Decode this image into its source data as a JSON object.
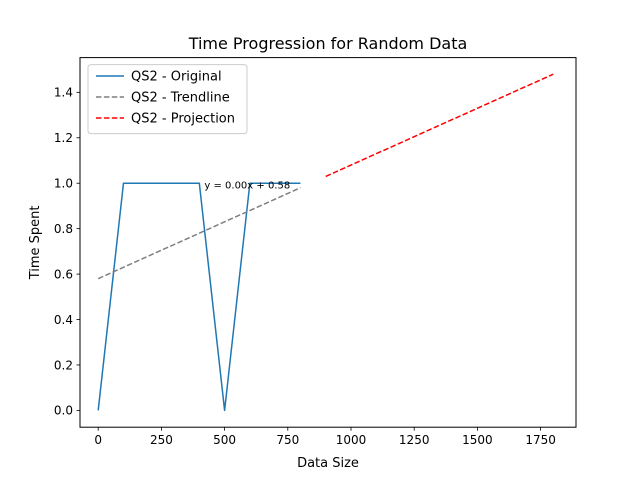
{
  "chart_data": {
    "type": "line",
    "title": "Time Progression for Random Data",
    "xlabel": "Data Size",
    "ylabel": "Time Spent",
    "xlim": [
      -72,
      1890
    ],
    "ylim": [
      -0.074,
      1.553
    ],
    "xticks": [
      0,
      250,
      500,
      750,
      1000,
      1250,
      1500,
      1750
    ],
    "yticks": [
      0.0,
      0.2,
      0.4,
      0.6,
      0.8,
      1.0,
      1.2,
      1.4
    ],
    "xtick_labels": [
      "0",
      "250",
      "500",
      "750",
      "1000",
      "1250",
      "1500",
      "1750"
    ],
    "ytick_labels": [
      "0.0",
      "0.2",
      "0.4",
      "0.6",
      "0.8",
      "1.0",
      "1.2",
      "1.4"
    ],
    "grid": false,
    "legend_position": "upper-left",
    "series": [
      {
        "name": "QS2 - Original",
        "color": "#1f77b4",
        "style": "solid",
        "x": [
          0,
          100,
          200,
          300,
          400,
          500,
          600,
          700,
          800
        ],
        "y": [
          0,
          1,
          1,
          1,
          1,
          0,
          1,
          1,
          1
        ]
      },
      {
        "name": "QS2 - Trendline",
        "color": "#7f7f7f",
        "style": "dashed",
        "x": [
          0,
          800
        ],
        "y": [
          0.58,
          0.98
        ]
      },
      {
        "name": "QS2 - Projection",
        "color": "#ff0000",
        "style": "dashed",
        "x": [
          900,
          1800
        ],
        "y": [
          1.03,
          1.48
        ]
      }
    ],
    "annotations": [
      {
        "text": "y = 0.00x + 0.58",
        "x": 420,
        "y": 0.995
      }
    ]
  }
}
